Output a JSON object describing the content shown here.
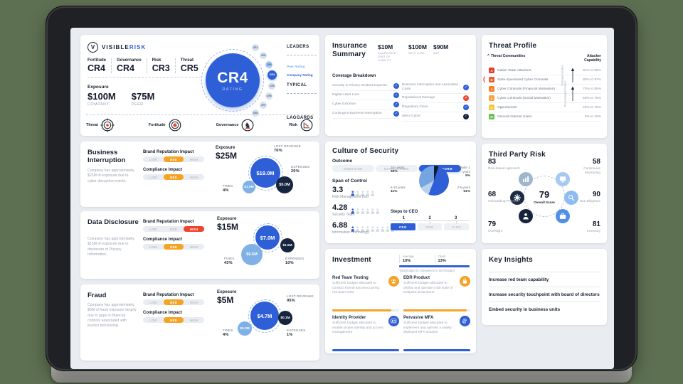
{
  "theme": {
    "accent": "#2f5fd7",
    "light_blue": "#7fb0e6",
    "navy": "#16243d",
    "orange": "#f5a324",
    "red": "#f0432c",
    "screen_bg": "#e9edf1"
  },
  "impact_options": [
    "LOW",
    "MED",
    "HIGH"
  ],
  "header": {
    "brand": {
      "name_primary": "VISIBLE",
      "name_secondary": "RISK",
      "logo_letter": "V"
    },
    "metrics": [
      {
        "label": "Fortitude",
        "value": "CR4"
      },
      {
        "label": "Governance",
        "value": "CR4"
      },
      {
        "label": "Risk",
        "value": "CR3"
      },
      {
        "label": "Threat",
        "value": "CR5"
      }
    ],
    "exposure": {
      "label": "Exposure",
      "items": [
        {
          "value": "$100M",
          "caption": "COMPANY"
        },
        {
          "value": "$75M",
          "caption": "PEER"
        }
      ]
    },
    "rating": {
      "value": "CR4",
      "caption": "RATING"
    },
    "gauge": {
      "levels": [
        "CR1",
        "CR2",
        "CR3",
        "CR4",
        "CR5",
        "CR6",
        "CR7",
        "CR8"
      ],
      "company": "CR4",
      "peer": "CR3",
      "peer_label": "Peer Rating",
      "company_label": "Company Rating",
      "bands": [
        "LEADERS",
        "TYPICAL",
        "LAGGARDS"
      ]
    },
    "domains": [
      {
        "label": "Threat",
        "icon": "target"
      },
      {
        "label": "Fortitude",
        "icon": "bullseye"
      },
      {
        "label": "Governance",
        "icon": "knight"
      },
      {
        "label": "Risk",
        "icon": "trend-down"
      }
    ]
  },
  "insurance": {
    "title": "Insurance Summary",
    "stats": [
      {
        "value": "$10M",
        "label": "AGGREGATE LIMIT OF LIABILITY"
      },
      {
        "value": "$100M",
        "label": "WITH LOSS"
      },
      {
        "value": "$90M",
        "label": "GAP"
      }
    ],
    "breakdown_title": "Coverage Breakdown",
    "columns": [
      [
        {
          "label": "Security & Privacy Incident Expense",
          "status": "covered"
        },
        {
          "label": "Digital Asset Loss",
          "status": "covered"
        },
        {
          "label": "Cyber Extortion",
          "status": "covered"
        },
        {
          "label": "Contingent Business Interruption",
          "status": "covered"
        }
      ],
      [
        {
          "label": "Business Interruption and Associated Costs",
          "status": "covered"
        },
        {
          "label": "Reputational Damage",
          "status": "not-covered"
        },
        {
          "label": "Regulatory Fines",
          "status": "covered"
        },
        {
          "label": "Silent Cyber",
          "status": "partial"
        }
      ]
    ]
  },
  "threat_profile": {
    "title": "Threat Profile",
    "col1": "Threat Communities",
    "col2": "Attacker Capability",
    "rows": [
      {
        "code": "A",
        "color": "#e63a2e",
        "name": "Nation State Attackers",
        "range": "91% to 99%",
        "marked": false
      },
      {
        "code": "E",
        "color": "#ef5b2c",
        "name": "State-Sponsored Cyber Criminals",
        "range": "80% to 97%",
        "marked": true
      },
      {
        "code": "J",
        "color": "#f5821f",
        "name": "Cyber Criminals (Financial Motivation)",
        "range": "70% to 85%",
        "marked": false
      },
      {
        "code": "L",
        "color": "#f9a13b",
        "name": "Cyber Criminals (Social Motivation)",
        "range": "50% to 75%",
        "marked": false
      },
      {
        "code": "K",
        "color": "#f7c531",
        "name": "Opportunists",
        "range": "40% to 70%",
        "marked": false
      },
      {
        "code": "N",
        "color": "#67bf4c",
        "name": "General Internet Users",
        "range": "0% to 40%",
        "marked": false
      }
    ],
    "groups": [
      {
        "label": "Privileged Insiders"
      },
      {
        "label": "Non-privileged Insiders"
      }
    ]
  },
  "risk_panels": [
    {
      "id": "bi",
      "title": "Business Interruption",
      "description": "Company has approximately $25M of exposure due to cyber disruption events.",
      "impacts": [
        {
          "label": "Brand Reputation Impact",
          "level": "MED",
          "color": "#f5a324"
        },
        {
          "label": "Compliance Impact",
          "level": "MED",
          "color": "#f5a324"
        }
      ],
      "exposure_label": "Exposure",
      "exposure": "$25M",
      "bubbles": [
        {
          "value": "$19.0M",
          "color": "#2f5fd7",
          "ring": true
        },
        {
          "value": "$5.0M",
          "color": "#16243d",
          "ring": false
        },
        {
          "value": "$1.0M",
          "color": "#7fb0e6",
          "ring": false
        }
      ],
      "callouts": [
        {
          "label": "LOST REVENUE",
          "pct": "76%"
        },
        {
          "label": "EXPENSES",
          "pct": "20%"
        },
        {
          "label": "FINES",
          "pct": "4%"
        }
      ]
    },
    {
      "id": "dd",
      "title": "Data Disclosure",
      "description": "Company has approximately $15M of exposure due to disclosure of Privacy Information.",
      "impacts": [
        {
          "label": "Brand Reputation Impact",
          "level": "HIGH",
          "color": "#f0432c"
        },
        {
          "label": "Compliance Impact",
          "level": "MED",
          "color": "#f5a324"
        }
      ],
      "exposure_label": "Exposure",
      "exposure": "$15M",
      "bubbles": [
        {
          "value": "$7.0M",
          "color": "#2f5fd7",
          "ring": true
        },
        {
          "value": "$1.5M",
          "color": "#16243d",
          "ring": false
        },
        {
          "value": "$6.5M",
          "color": "#7fb0e6",
          "ring": false
        }
      ],
      "callouts": [
        {
          "label": "FINES",
          "pct": "43%"
        },
        {
          "label": "EXPENSES",
          "pct": "10%"
        }
      ]
    },
    {
      "id": "fraud",
      "title": "Fraud",
      "description": "Company has approximately $5M of fraud exposure largely due to gaps in financial controls associated with invoice processing.",
      "impacts": [
        {
          "label": "Brand Reputation Impact",
          "level": "MED",
          "color": "#f5a324"
        },
        {
          "label": "Compliance Impact",
          "level": "MED",
          "color": "#f5a324"
        }
      ],
      "exposure_label": "Exposure",
      "exposure": "$5M",
      "bubbles": [
        {
          "value": "$4.7M",
          "color": "#2f5fd7",
          "ring": true
        },
        {
          "value": "$0.1M",
          "color": "#16243d",
          "ring": false
        },
        {
          "value": "$0.2M",
          "color": "#7fb0e6",
          "ring": false
        }
      ],
      "callouts": [
        {
          "label": "LOST REVENUE",
          "pct": "95%"
        },
        {
          "label": "EXPENSES",
          "pct": "1%"
        },
        {
          "label": "FINES",
          "pct": "4%"
        }
      ]
    }
  ],
  "culture": {
    "title": "Culture of Security",
    "outcome_label": "Outcome",
    "outcome_options": [
      "EMERGING",
      "ESTABLISHED",
      "OUTPERFORM"
    ],
    "outcome_selected": "OUTPERFORM",
    "span_label": "Span of Control",
    "span_rows": [
      {
        "value": "3.3",
        "label": "Risk Management Dep",
        "icons": 5,
        "filled": 1
      },
      {
        "value": "4.28",
        "label": "Security Team",
        "icons": 6,
        "filled": 1
      },
      {
        "value": "6.88",
        "label": "Information Technology",
        "icons": 9,
        "filled": 1
      }
    ],
    "tenure_pie": {
      "slices": [
        {
          "label": "Under 2 years",
          "pct": 5,
          "color": "#101c30"
        },
        {
          "label": "2-6 years",
          "pct": 51,
          "color": "#2f5fd7"
        },
        {
          "label": "6-10 years",
          "pct": 11,
          "color": "#b9d0ee"
        },
        {
          "label": "10+ years",
          "pct": 33,
          "color": "#74a5e0"
        }
      ]
    },
    "steps": {
      "title": "Steps to CEO",
      "numbers": [
        "1",
        "2",
        "3"
      ],
      "boxes": [
        {
          "label": "CEO",
          "active": true
        },
        {
          "label": "CRO",
          "active": false
        },
        {
          "label": "CISO",
          "active": false
        }
      ]
    }
  },
  "third_party": {
    "title": "Third Party Risk",
    "center": {
      "value": "79",
      "label": "Overall Score"
    },
    "stats": [
      {
        "value": "83",
        "label": "Risk-based Approach",
        "icon": "chart",
        "icon_color": "#9fb6cf",
        "pos": "tl"
      },
      {
        "value": "58",
        "label": "Continuous Monitoring",
        "icon": "monitor",
        "icon_color": "#a7c8f0",
        "pos": "tr"
      },
      {
        "value": "68",
        "label": "Onboarding Process",
        "icon": "gear",
        "icon_color": "#1c2b45",
        "pos": "ml"
      },
      {
        "value": "90",
        "label": "Due Diligence",
        "icon": "magnifier",
        "icon_color": "#8fbcf0",
        "pos": "mr"
      },
      {
        "value": "79",
        "label": "Oversight",
        "icon": "person",
        "icon_color": "#16243d",
        "pos": "bl"
      },
      {
        "value": "81",
        "label": "Inventory",
        "icon": "briefcase",
        "icon_color": "#4f8fe8",
        "pos": "br"
      }
    ]
  },
  "investment": {
    "title": "Investment",
    "legend": {
      "cells": [
        {
          "label": "Average",
          "value": "10%"
        },
        {
          "label": "Client",
          "value": "13%"
        }
      ],
      "caption": "Total budget in comparison to tech budget"
    },
    "items": [
      {
        "title": "Red Team Testing",
        "description": "Sufficient budget allocated to conduct formal and reoccurring red team tests",
        "icon": "person-wave",
        "color": "#f5a324",
        "progress": 88
      },
      {
        "title": "EDR Product",
        "description": "Sufficient budget allocated to deploy and operate a full suite of endpoint protections",
        "icon": "lock",
        "color": "#f5a324",
        "progress": 95
      },
      {
        "title": "Identity Provider",
        "description": "Sufficient budget allocated to enable proper identity and access management",
        "icon": "id-card",
        "color": "#2f5fd7",
        "progress": 100
      },
      {
        "title": "Pervasive MFA",
        "description": "Sufficient budget allocated to implement and operate a widely deployed MFA solution",
        "icon": "fingerprint",
        "color": "#2f5fd7",
        "progress": 100
      }
    ]
  },
  "insights": {
    "title": "Key Insights",
    "items": [
      "Increase red team capability",
      "Increase security touchpoint with board of directors",
      "Embed security in business units"
    ]
  }
}
